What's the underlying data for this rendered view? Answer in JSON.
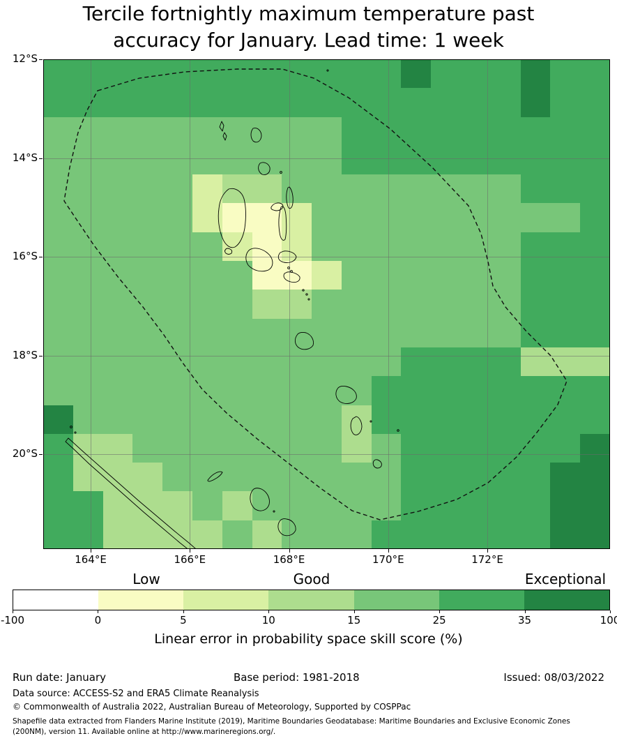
{
  "title": {
    "line1": "Tercile fortnightly maximum temperature past",
    "line2": "accuracy for January. Lead time: 1 week"
  },
  "chart_data": {
    "type": "heatmap",
    "title": "Tercile fortnightly maximum temperature past accuracy for January. Lead time: 1 week",
    "x_tick_labels": [
      "164°E",
      "166°E",
      "168°E",
      "170°E",
      "172°E"
    ],
    "y_tick_labels": [
      "12°S",
      "14°S",
      "16°S",
      "18°S",
      "20°S"
    ],
    "x_range_deg_east": [
      163.0,
      174.4
    ],
    "y_range_deg_south": [
      12.0,
      21.9
    ],
    "colorbar": {
      "boundaries": [
        -100,
        0,
        5,
        10,
        15,
        25,
        35,
        100
      ],
      "colors": [
        "#ffffff",
        "#f9fcc3",
        "#d9f0a3",
        "#addd8e",
        "#78c679",
        "#41ab5d",
        "#238443"
      ],
      "qualitative_labels": [
        "Low",
        "Good",
        "Exceptional"
      ],
      "caption": "Linear error in probability space skill score (%)"
    },
    "grid": {
      "encoding": "each digit = colorbar interval index: 1:0-5, 2:5-10, 3:10-15, 4:15-25, 5:25-35, 6:35-100 (%)",
      "ncols": 19,
      "nrows": 17,
      "rows": [
        "5555555555556555655",
        "5555555555555555655",
        "4444444444555555555",
        "4444444444555555555",
        "4444423344444444555",
        "4444421124444444445",
        "4444442124444444555",
        "4444444112444444555",
        "4444444334444444555",
        "4444444444444444555",
        "4444444444445555333",
        "4444444444455555555",
        "6444444444355555555",
        "5334444444345555556",
        "5333444444445555566",
        "5533343444445555566",
        "5533334344455555566"
      ]
    },
    "overlays": {
      "eez_boundary_style": "dashed",
      "coastlines": "Vanuatu archipelago and New Caledonia"
    }
  },
  "footer": {
    "run_date": "Run date: January",
    "base_period": "Base period: 1981-2018",
    "issued": "Issued: 08/03/2022",
    "data_source": "Data source: ACCESS-S2 and ERA5 Climate Reanalysis",
    "copyright": "© Commonwealth of Australia 2022, Australian Bureau of Meteorology, Supported by COSPPac",
    "shapefile_note": "Shapefile data extracted from Flanders Marine Institute (2019), Maritime Boundaries Geodatabase: Maritime Boundaries and Exclusive Economic Zones (200NM), version 11. Available online at http://www.marineregions.org/."
  }
}
